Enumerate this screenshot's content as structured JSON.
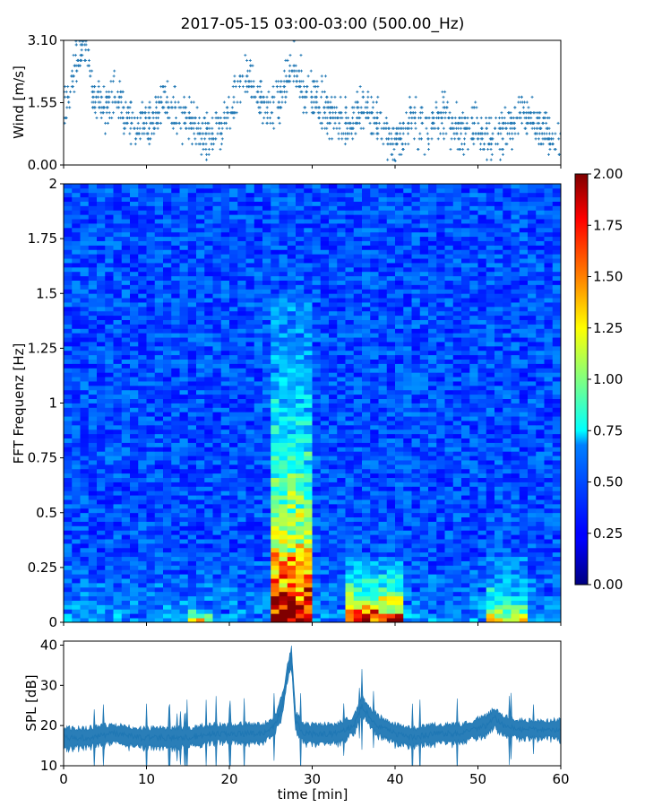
{
  "chart_data": [
    {
      "type": "scatter",
      "title": "2017-05-15 03:00-03:00 (500.00_Hz)",
      "ylabel": "Wind [m/s]",
      "ylim": [
        0,
        3.1
      ],
      "xlim": [
        0,
        60
      ],
      "yticks": [
        "0.00",
        "1.55",
        "3.10"
      ],
      "series": [
        {
          "color": "#1f77b4",
          "x": [
            0.5,
            1,
            1.5,
            2,
            2.5,
            3,
            3.5,
            4,
            5,
            6,
            7,
            8,
            9,
            10,
            11,
            12,
            13,
            14,
            15,
            16,
            17,
            18,
            19,
            20,
            21,
            22,
            23,
            24,
            25,
            26,
            27,
            28,
            29,
            30,
            31,
            32,
            33,
            34,
            35,
            36,
            37,
            38,
            39,
            40,
            41,
            42,
            43,
            44,
            45,
            46,
            47,
            48,
            49,
            50,
            51,
            52,
            53,
            54,
            55,
            56,
            57,
            58,
            59,
            60
          ],
          "y": [
            1.5,
            2.2,
            2.6,
            2.8,
            2.9,
            2.5,
            1.8,
            1.6,
            1.3,
            1.9,
            1.4,
            1.1,
            0.9,
            1.0,
            1.2,
            1.6,
            1.4,
            1.2,
            1.1,
            0.8,
            0.7,
            0.8,
            1.0,
            1.3,
            1.7,
            2.2,
            1.9,
            1.5,
            1.3,
            1.6,
            2.1,
            2.5,
            1.8,
            1.7,
            1.5,
            1.4,
            1.2,
            1.0,
            1.1,
            1.4,
            1.2,
            1.0,
            0.7,
            0.6,
            0.8,
            1.2,
            0.9,
            0.9,
            1.1,
            1.3,
            1.0,
            0.8,
            0.9,
            1.0,
            0.8,
            0.7,
            0.8,
            1.0,
            1.4,
            1.2,
            1.0,
            0.8,
            0.6,
            0.6
          ]
        }
      ]
    },
    {
      "type": "heatmap",
      "ylabel": "FFT Frequenz [Hz]",
      "xlim": [
        0,
        60
      ],
      "ylim": [
        0,
        2
      ],
      "yticks": [
        "0",
        "0.25",
        "0.5",
        "0.75",
        "1",
        "1.25",
        "1.5",
        "1.75",
        "2"
      ],
      "colorbar": {
        "range": [
          0,
          2
        ],
        "ticks": [
          "0.00",
          "0.25",
          "0.50",
          "0.75",
          "1.00",
          "1.25",
          "1.50",
          "1.75",
          "2.00"
        ],
        "colormap": "jet"
      },
      "hotspots": [
        {
          "t_start": 25.5,
          "t_end": 29.5,
          "f_max": 1.5,
          "intensity": 0.9
        },
        {
          "t_start": 34,
          "t_end": 41,
          "f_max": 0.3,
          "intensity": 0.8
        },
        {
          "t_start": 51,
          "t_end": 56,
          "f_max": 0.3,
          "intensity": 0.45
        },
        {
          "t_start": 15,
          "t_end": 18,
          "f_max": 0.05,
          "intensity": 0.6
        }
      ]
    },
    {
      "type": "line",
      "ylabel": "SPL [dB]",
      "xlabel": "time [min]",
      "xlim": [
        0,
        60
      ],
      "ylim": [
        10,
        41
      ],
      "yticks": [
        "10",
        "20",
        "30",
        "40"
      ],
      "xticks": [
        "0",
        "10",
        "20",
        "30",
        "40",
        "50",
        "60"
      ],
      "series": [
        {
          "color": "#1f77b4",
          "x": [
            0,
            3,
            6,
            9,
            12,
            15,
            18,
            21,
            24,
            25.5,
            26.5,
            27,
            27.5,
            28,
            29,
            31,
            33,
            35,
            36,
            37,
            38,
            40,
            42,
            45,
            48,
            51,
            52,
            53,
            55,
            57,
            60
          ],
          "y": [
            17,
            17,
            18,
            17,
            17,
            17,
            18,
            18,
            18,
            20,
            26,
            33,
            37,
            21,
            18,
            18,
            18,
            20,
            25,
            22,
            20,
            18,
            17,
            18,
            18,
            20,
            22,
            20,
            19,
            19,
            19
          ]
        }
      ]
    }
  ]
}
